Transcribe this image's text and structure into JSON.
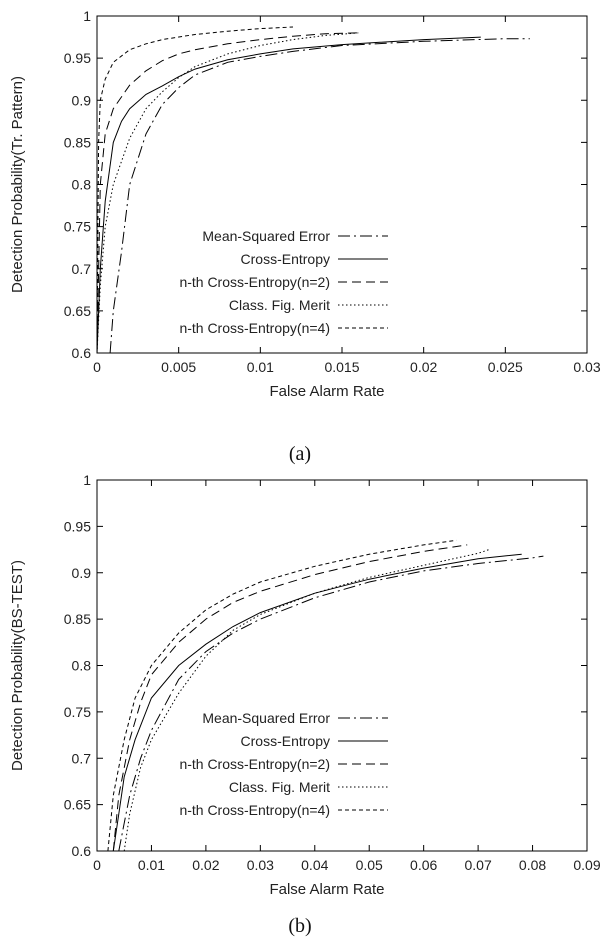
{
  "styles": {
    "Mean-Squared Error": "12,4,2,4",
    "Cross-Entropy": "",
    "n-th Cross-Entropy(n=2)": "9,5",
    "Class. Fig. Merit": "1.5,2.5",
    "n-th Cross-Entropy(n=4)": "4,3"
  },
  "chart_data": [
    {
      "type": "line",
      "caption": "(a)",
      "xlabel": "False Alarm Rate",
      "ylabel": "Detection Probability(Tr. Pattern)",
      "xlim": [
        0,
        0.03
      ],
      "ylim": [
        0.6,
        1
      ],
      "xticks": [
        "0",
        "0.005",
        "0.01",
        "0.015",
        "0.02",
        "0.025",
        "0.03"
      ],
      "yticks": [
        "0.6",
        "0.65",
        "0.7",
        "0.75",
        "0.8",
        "0.85",
        "0.9",
        "0.95",
        "1"
      ],
      "legend_position": "bottom-right",
      "series": [
        {
          "name": "Mean-Squared Error",
          "x": [
            0.0008,
            0.001,
            0.0015,
            0.002,
            0.003,
            0.004,
            0.005,
            0.006,
            0.008,
            0.01,
            0.012,
            0.015,
            0.02,
            0.025,
            0.0265
          ],
          "y": [
            0.6,
            0.65,
            0.72,
            0.8,
            0.86,
            0.895,
            0.915,
            0.93,
            0.945,
            0.952,
            0.958,
            0.965,
            0.97,
            0.973,
            0.973
          ]
        },
        {
          "name": "Cross-Entropy",
          "x": [
            0,
            0.0002,
            0.0005,
            0.001,
            0.0015,
            0.002,
            0.003,
            0.004,
            0.005,
            0.006,
            0.008,
            0.01,
            0.012,
            0.015,
            0.02,
            0.0235
          ],
          "y": [
            0.6,
            0.7,
            0.78,
            0.85,
            0.875,
            0.89,
            0.907,
            0.917,
            0.928,
            0.937,
            0.948,
            0.955,
            0.961,
            0.966,
            0.972,
            0.975
          ]
        },
        {
          "name": "n-th Cross-Entropy(n=2)",
          "x": [
            0,
            0.0002,
            0.0005,
            0.001,
            0.002,
            0.003,
            0.004,
            0.005,
            0.006,
            0.008,
            0.01,
            0.012,
            0.014,
            0.016
          ],
          "y": [
            0.6,
            0.8,
            0.86,
            0.89,
            0.918,
            0.935,
            0.947,
            0.955,
            0.96,
            0.967,
            0.972,
            0.976,
            0.979,
            0.98
          ]
        },
        {
          "name": "Class. Fig. Merit",
          "x": [
            0,
            0.0002,
            0.0005,
            0.001,
            0.002,
            0.003,
            0.004,
            0.005,
            0.006,
            0.008,
            0.01,
            0.012,
            0.014,
            0.016
          ],
          "y": [
            0.6,
            0.68,
            0.75,
            0.8,
            0.855,
            0.89,
            0.91,
            0.927,
            0.94,
            0.955,
            0.965,
            0.972,
            0.977,
            0.98
          ]
        },
        {
          "name": "n-th Cross-Entropy(n=4)",
          "x": [
            0,
            0.0001,
            0.0002,
            0.0005,
            0.001,
            0.002,
            0.003,
            0.004,
            0.006,
            0.008,
            0.01,
            0.012
          ],
          "y": [
            0.6,
            0.85,
            0.9,
            0.925,
            0.945,
            0.96,
            0.967,
            0.972,
            0.978,
            0.982,
            0.985,
            0.987
          ]
        }
      ]
    },
    {
      "type": "line",
      "caption": "(b)",
      "xlabel": "False Alarm Rate",
      "ylabel": "Detection Probability(BS-TEST)",
      "xlim": [
        0,
        0.09
      ],
      "ylim": [
        0.6,
        1
      ],
      "xticks": [
        "0",
        "0.01",
        "0.02",
        "0.03",
        "0.04",
        "0.05",
        "0.06",
        "0.07",
        "0.08",
        "0.09"
      ],
      "yticks": [
        "0.6",
        "0.65",
        "0.7",
        "0.75",
        "0.8",
        "0.85",
        "0.9",
        "0.95",
        "1"
      ],
      "legend_position": "bottom-right",
      "series": [
        {
          "name": "Mean-Squared Error",
          "x": [
            0.004,
            0.005,
            0.006,
            0.008,
            0.01,
            0.015,
            0.02,
            0.025,
            0.03,
            0.04,
            0.05,
            0.06,
            0.07,
            0.08,
            0.082
          ],
          "y": [
            0.6,
            0.63,
            0.66,
            0.7,
            0.73,
            0.785,
            0.815,
            0.835,
            0.85,
            0.873,
            0.89,
            0.902,
            0.91,
            0.916,
            0.918
          ]
        },
        {
          "name": "Cross-Entropy",
          "x": [
            0.003,
            0.004,
            0.005,
            0.007,
            0.01,
            0.015,
            0.02,
            0.025,
            0.03,
            0.04,
            0.05,
            0.06,
            0.07,
            0.078
          ],
          "y": [
            0.6,
            0.64,
            0.68,
            0.72,
            0.765,
            0.8,
            0.823,
            0.842,
            0.857,
            0.878,
            0.893,
            0.905,
            0.915,
            0.92
          ]
        },
        {
          "name": "n-th Cross-Entropy(n=2)",
          "x": [
            0.003,
            0.004,
            0.006,
            0.008,
            0.01,
            0.015,
            0.02,
            0.025,
            0.03,
            0.04,
            0.05,
            0.06,
            0.068
          ],
          "y": [
            0.6,
            0.66,
            0.72,
            0.76,
            0.79,
            0.825,
            0.85,
            0.868,
            0.88,
            0.898,
            0.912,
            0.923,
            0.93
          ]
        },
        {
          "name": "Class. Fig. Merit",
          "x": [
            0.005,
            0.006,
            0.008,
            0.01,
            0.015,
            0.02,
            0.025,
            0.03,
            0.04,
            0.05,
            0.06,
            0.07,
            0.072
          ],
          "y": [
            0.6,
            0.64,
            0.69,
            0.72,
            0.77,
            0.81,
            0.838,
            0.855,
            0.878,
            0.895,
            0.908,
            0.921,
            0.925
          ]
        },
        {
          "name": "n-th Cross-Entropy(n=4)",
          "x": [
            0.002,
            0.003,
            0.005,
            0.007,
            0.01,
            0.015,
            0.02,
            0.025,
            0.03,
            0.04,
            0.05,
            0.06,
            0.066
          ],
          "y": [
            0.6,
            0.66,
            0.72,
            0.765,
            0.8,
            0.835,
            0.86,
            0.877,
            0.89,
            0.907,
            0.92,
            0.93,
            0.935
          ]
        }
      ]
    }
  ]
}
